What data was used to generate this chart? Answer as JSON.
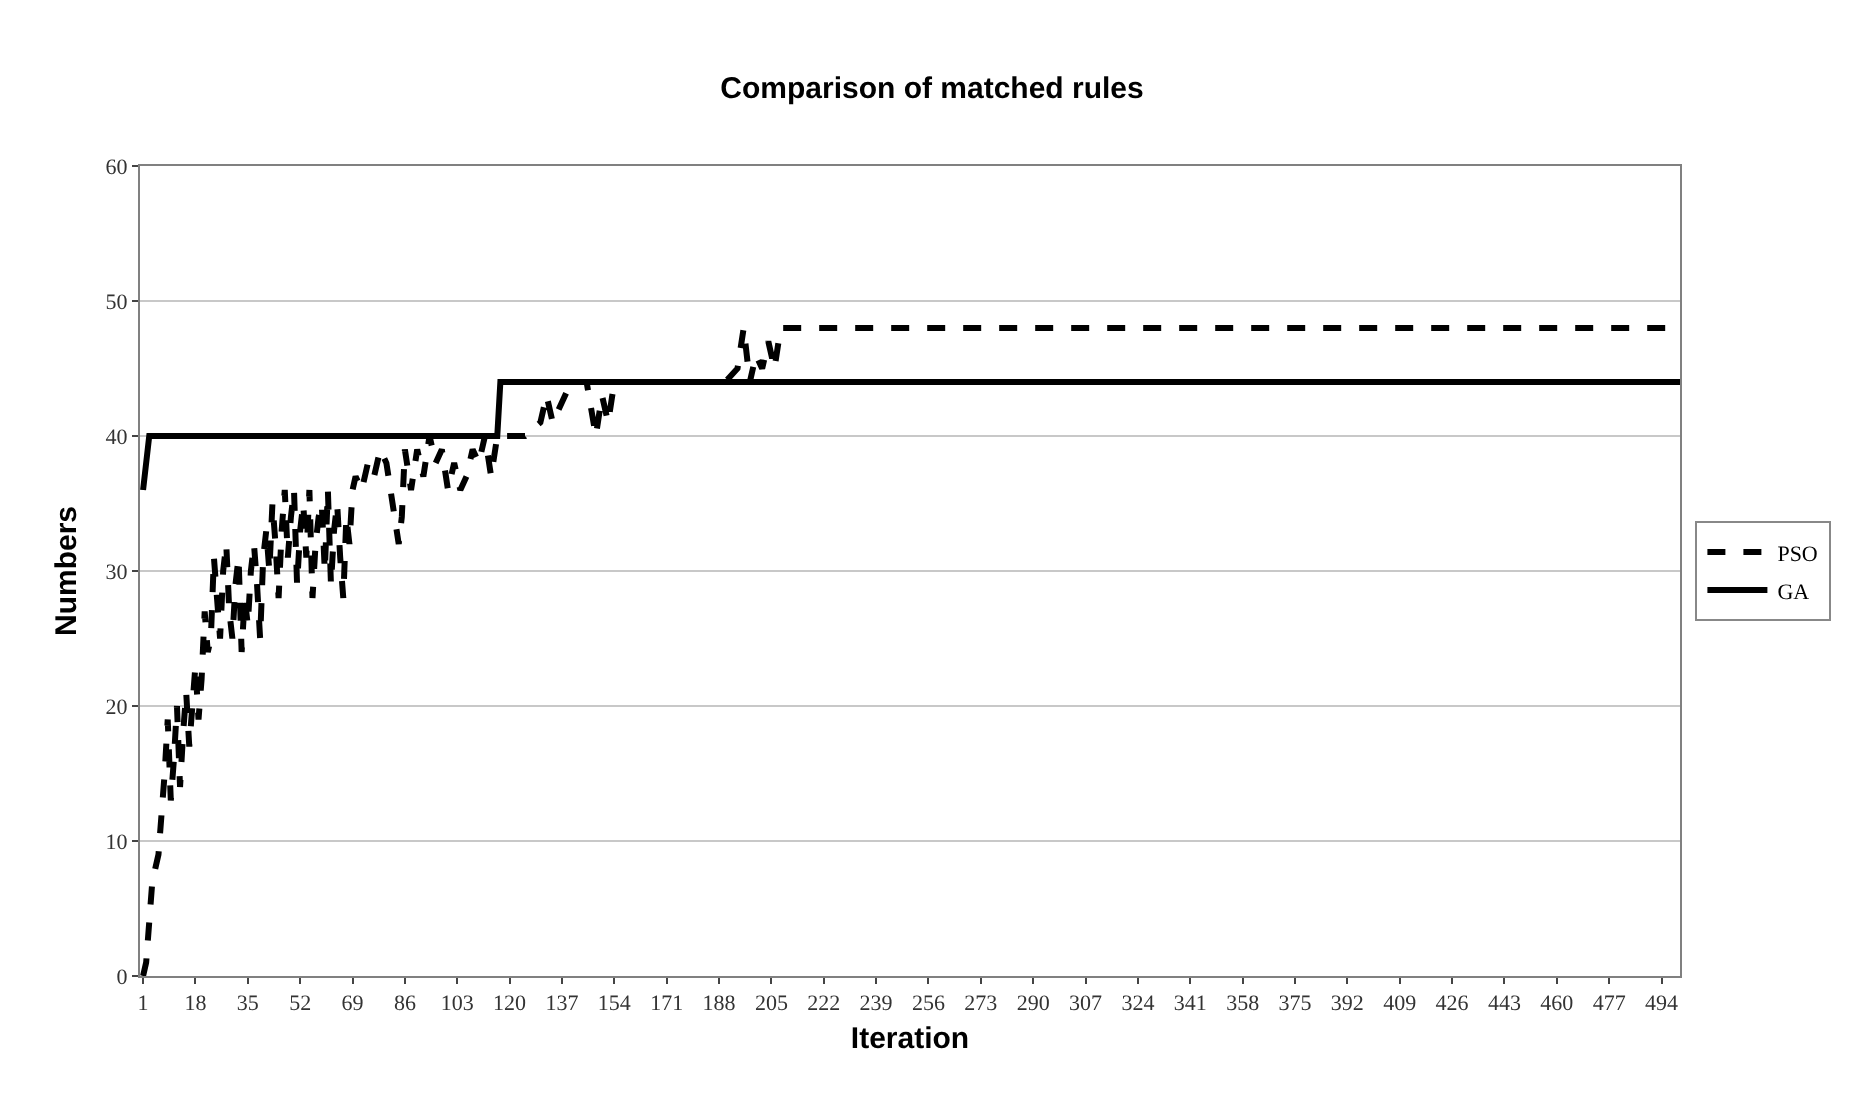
{
  "chart_data": {
    "type": "line",
    "title": "Comparison of matched rules",
    "xlabel": "Iteration",
    "ylabel": "Numbers",
    "xlim": [
      0,
      500
    ],
    "xticks": [
      1,
      18,
      35,
      52,
      69,
      86,
      103,
      120,
      137,
      154,
      171,
      188,
      205,
      222,
      239,
      256,
      273,
      290,
      307,
      324,
      341,
      358,
      375,
      392,
      409,
      426,
      443,
      460,
      477,
      494
    ],
    "ylim": [
      0,
      60
    ],
    "yticks": [
      0,
      10,
      20,
      30,
      40,
      50,
      60
    ],
    "grid": "y",
    "legend": "right",
    "marker": "none",
    "series": [
      {
        "name": "PSO",
        "color": "#000000",
        "line_style": "dashed",
        "x": [
          1,
          2,
          3,
          4,
          5,
          6,
          7,
          8,
          9,
          10,
          11,
          12,
          13,
          14,
          15,
          16,
          17,
          18,
          19,
          20,
          21,
          22,
          23,
          24,
          25,
          26,
          27,
          28,
          29,
          30,
          31,
          32,
          33,
          34,
          35,
          36,
          37,
          38,
          39,
          40,
          41,
          42,
          43,
          44,
          45,
          46,
          47,
          48,
          49,
          50,
          51,
          52,
          53,
          54,
          55,
          56,
          57,
          58,
          59,
          60,
          61,
          62,
          63,
          64,
          65,
          66,
          67,
          68,
          69,
          70,
          72,
          74,
          76,
          78,
          80,
          82,
          84,
          85,
          86,
          88,
          90,
          92,
          94,
          96,
          98,
          100,
          102,
          104,
          106,
          108,
          110,
          112,
          114,
          116,
          120,
          125,
          130,
          132,
          134,
          136,
          140,
          145,
          148,
          150,
          152,
          154,
          160,
          190,
          194,
          196,
          198,
          200,
          202,
          204,
          206,
          208,
          500
        ],
        "values": [
          0,
          1,
          4,
          7,
          8,
          9,
          12,
          15,
          19,
          13,
          16,
          20,
          14,
          18,
          21,
          17,
          20,
          23,
          19,
          22,
          27,
          24,
          25,
          31,
          28,
          25,
          30,
          32,
          27,
          25,
          29,
          31,
          24,
          28,
          26,
          30,
          32,
          29,
          25,
          31,
          33,
          30,
          35,
          32,
          28,
          33,
          36,
          31,
          34,
          36,
          29,
          33,
          35,
          31,
          36,
          28,
          32,
          34,
          35,
          30,
          36,
          29,
          33,
          35,
          31,
          28,
          34,
          32,
          36,
          37,
          36,
          38,
          37,
          39,
          38,
          35,
          32,
          34,
          39,
          36,
          39,
          37,
          40,
          38,
          39,
          36,
          38,
          36,
          37,
          39,
          38,
          40,
          37,
          40,
          40,
          40,
          41,
          43,
          41,
          42,
          44,
          44,
          40,
          43,
          41,
          44,
          44,
          44,
          45,
          48,
          44,
          46,
          45,
          47,
          45,
          48,
          48
        ]
      },
      {
        "name": "GA",
        "color": "#000000",
        "line_style": "solid",
        "x": [
          1,
          3,
          116,
          117,
          500
        ],
        "values": [
          36,
          40,
          40,
          44,
          44
        ]
      }
    ]
  }
}
